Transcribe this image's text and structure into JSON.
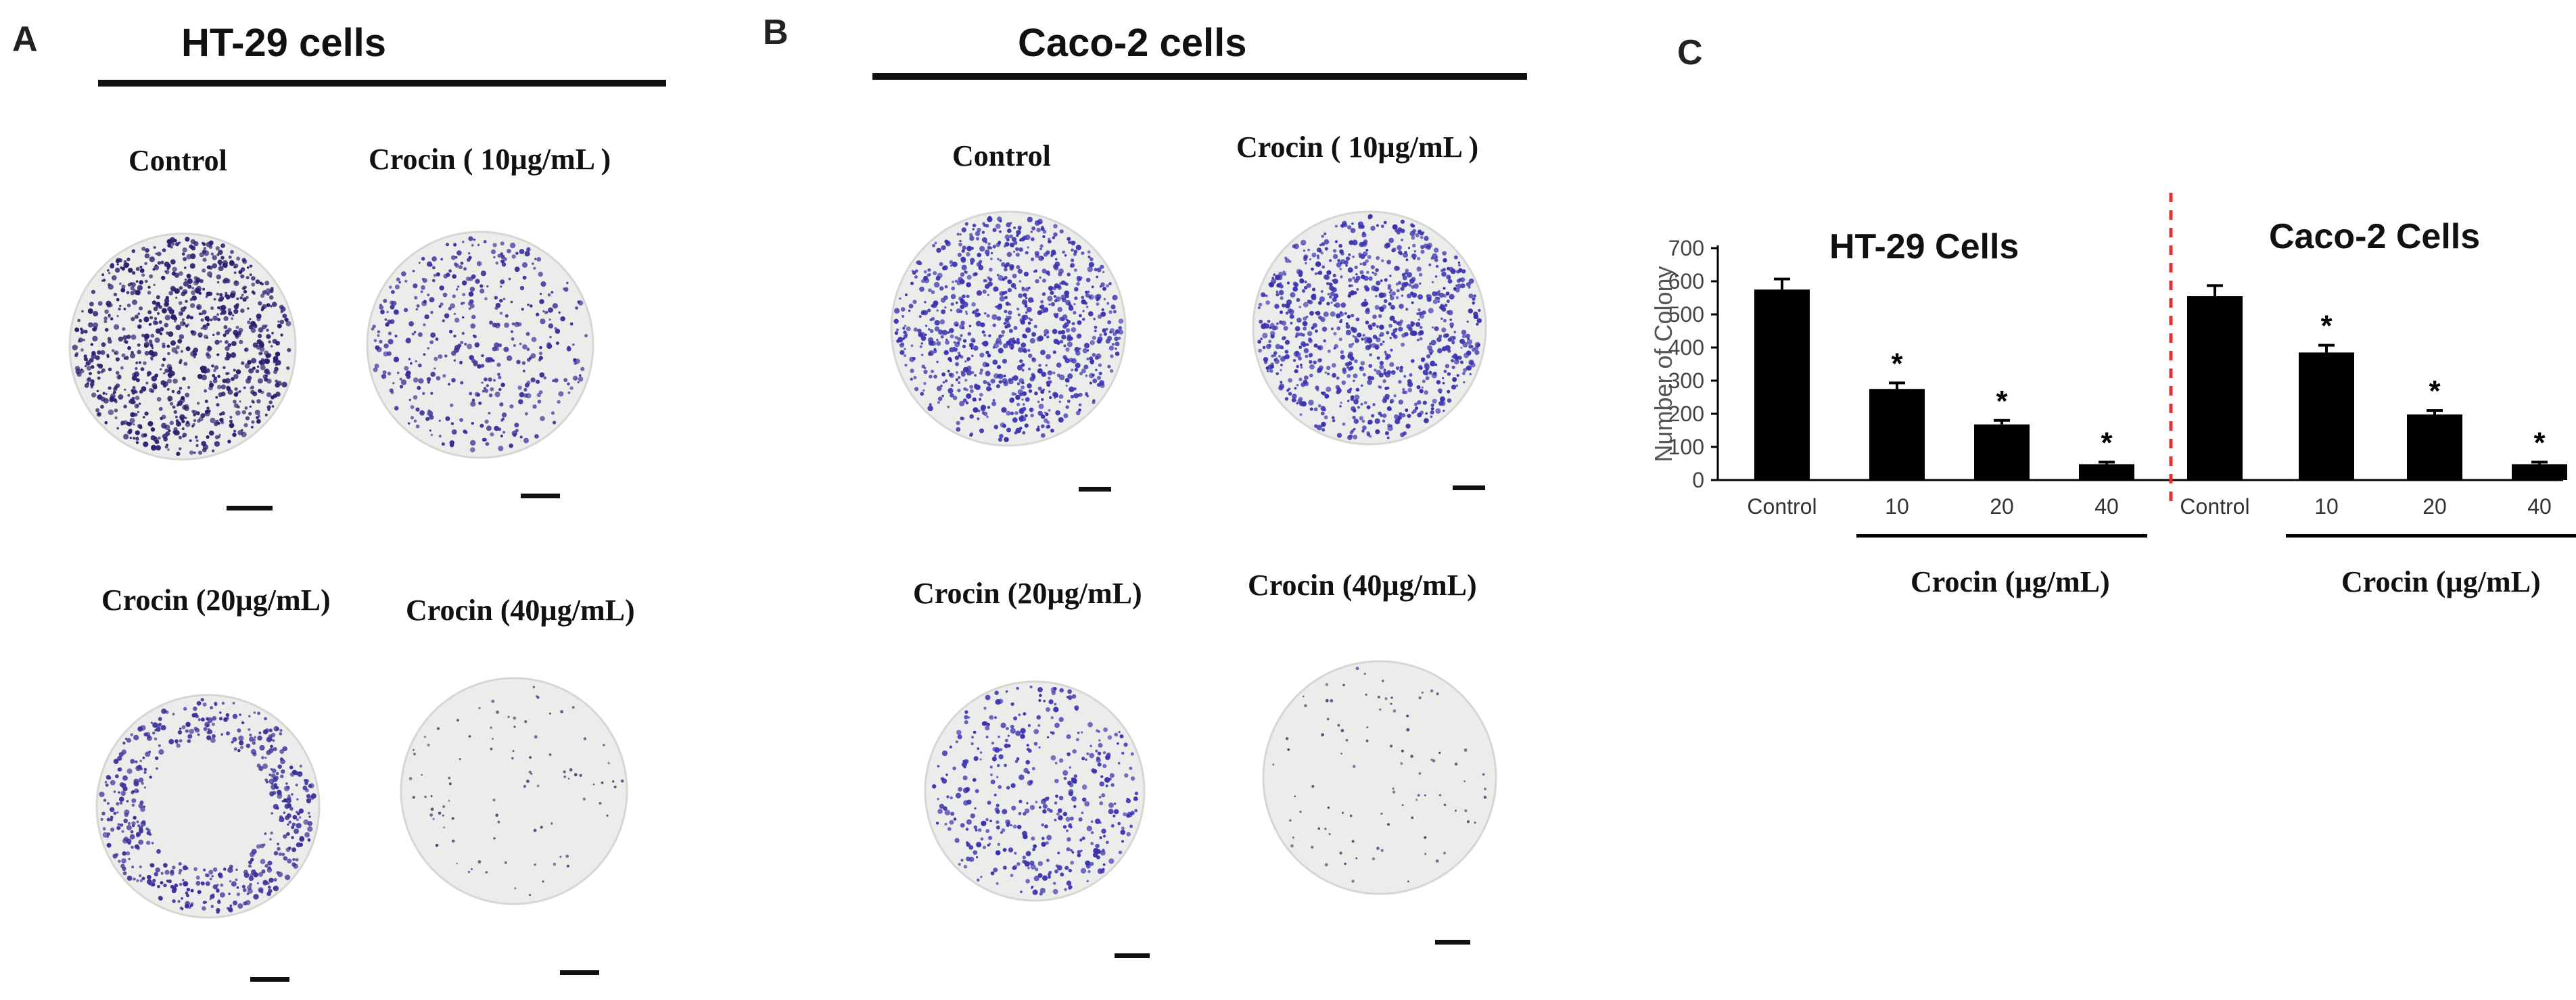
{
  "panel_a": {
    "letter": "A",
    "title": "HT-29 cells",
    "wells": [
      {
        "label": "Control",
        "density": "high",
        "color": "#2a1f6e"
      },
      {
        "label": "Crocin ( 10µg/mL )",
        "density": "medium",
        "color": "#3a2f9a"
      },
      {
        "label": "Crocin (20µg/mL)",
        "density": "medium-edge",
        "color": "#3a2f9a"
      },
      {
        "label": "Crocin (40µg/mL)",
        "density": "sparse",
        "color": "#4a4a7a"
      }
    ]
  },
  "panel_b": {
    "letter": "B",
    "title": "Caco-2 cells",
    "wells": [
      {
        "label": "Control",
        "density": "high",
        "color": "#3a32b0"
      },
      {
        "label": "Crocin ( 10µg/mL )",
        "density": "high",
        "color": "#3a32b0"
      },
      {
        "label": "Crocin (20µg/mL)",
        "density": "medium",
        "color": "#3a32b0"
      },
      {
        "label": "Crocin (40µg/mL)",
        "density": "sparse",
        "color": "#4a4a7a"
      }
    ]
  },
  "panel_c": {
    "letter": "C"
  },
  "chart_data": {
    "type": "bar",
    "ylabel": "Number of Colony",
    "ylim": [
      0,
      700
    ],
    "yticks": [
      0,
      100,
      200,
      300,
      400,
      500,
      600,
      700
    ],
    "bar_color": "#000000",
    "divider_color": "#e03030",
    "groups": [
      {
        "title": "HT-29 Cells",
        "categories": [
          "Control",
          "10",
          "20",
          "40"
        ],
        "values": [
          575,
          275,
          168,
          48
        ],
        "errors": [
          32,
          18,
          12,
          6
        ],
        "significance": [
          "",
          "*",
          "*",
          "*"
        ],
        "xtitle": "Crocin (µg/mL)"
      },
      {
        "title": "Caco-2 Cells",
        "categories": [
          "Control",
          "10",
          "20",
          "40"
        ],
        "values": [
          555,
          385,
          198,
          48
        ],
        "errors": [
          32,
          22,
          12,
          6
        ],
        "significance": [
          "",
          "*",
          "*",
          "*"
        ],
        "xtitle": "Crocin (µg/mL)"
      }
    ]
  }
}
